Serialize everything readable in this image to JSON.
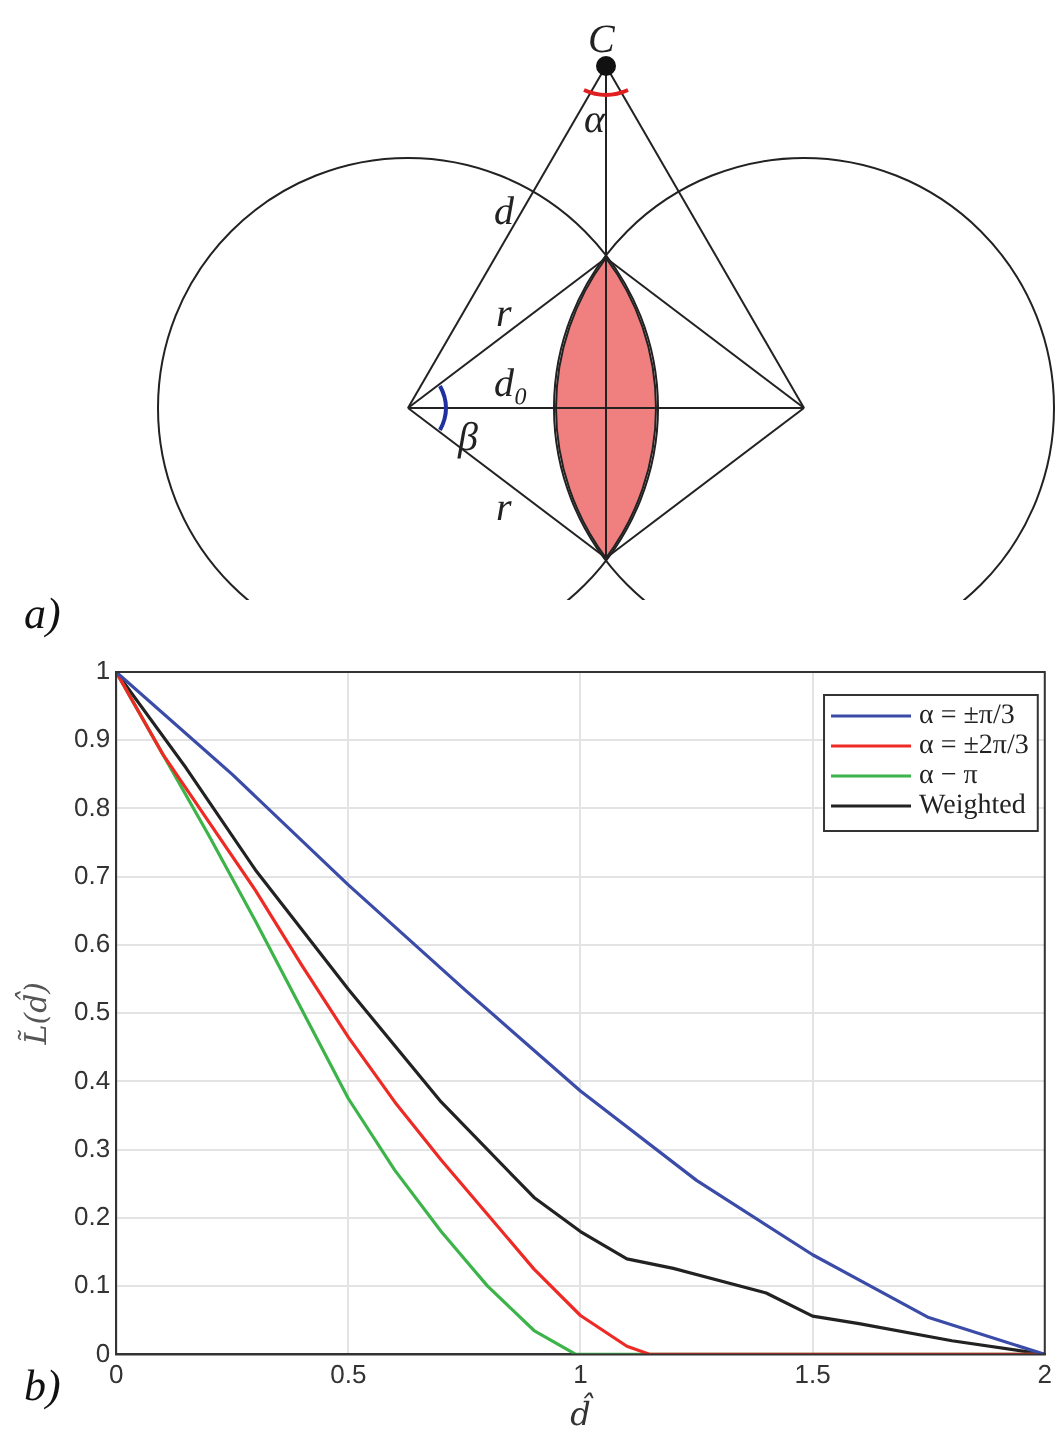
{
  "chart_data": {
    "type": "line",
    "xlabel": "d̂",
    "ylabel": "L̃(d̂)",
    "annotations": [
      "a)",
      "b)",
      "C",
      "α",
      "d",
      "r",
      "d₀",
      "β",
      "r"
    ],
    "series": [
      {
        "name": "α = ±π/3",
        "color": "#3b4ba8",
        "x": [
          0,
          0.25,
          0.5,
          0.75,
          1,
          1.25,
          1.5,
          1.75,
          2
        ],
        "values": [
          1,
          0.85,
          0.688,
          0.535,
          0.386,
          0.255,
          0.146,
          0.054,
          0
        ]
      },
      {
        "name": "α = ±2π/3",
        "color": "#ee2a24",
        "x": [
          0,
          0.1,
          0.2,
          0.3,
          0.4,
          0.5,
          0.6,
          0.7,
          0.8,
          0.9,
          1,
          1.1,
          1.15,
          2
        ],
        "values": [
          1,
          0.88,
          0.78,
          0.68,
          0.57,
          0.465,
          0.37,
          0.285,
          0.205,
          0.125,
          0.057,
          0.012,
          0,
          0
        ]
      },
      {
        "name": "α − π",
        "color": "#3cb44a",
        "x": [
          0,
          0.1,
          0.2,
          0.3,
          0.4,
          0.5,
          0.6,
          0.7,
          0.8,
          0.9,
          0.99,
          2
        ],
        "values": [
          1,
          0.88,
          0.76,
          0.635,
          0.505,
          0.375,
          0.27,
          0.18,
          0.1,
          0.035,
          0,
          0
        ]
      },
      {
        "name": "Weighted",
        "color": "#222222",
        "x": [
          0,
          0.15,
          0.3,
          0.5,
          0.7,
          0.9,
          1,
          1.1,
          1.2,
          1.4,
          1.5,
          1.6,
          1.8,
          2
        ],
        "values": [
          1,
          0.86,
          0.71,
          0.535,
          0.37,
          0.23,
          0.18,
          0.14,
          0.126,
          0.09,
          0.056,
          0.045,
          0.02,
          0
        ]
      }
    ],
    "xlim": [
      0,
      2
    ],
    "xticks": [
      0,
      0.5,
      1,
      1.5,
      2
    ],
    "ylim": [
      0,
      1
    ],
    "yticks": [
      0,
      0.1,
      0.2,
      0.3,
      0.4,
      0.5,
      0.6,
      0.7,
      0.8,
      0.9,
      1
    ],
    "grid": true,
    "legend": "top right",
    "marker": "none",
    "line_style": "solid"
  }
}
